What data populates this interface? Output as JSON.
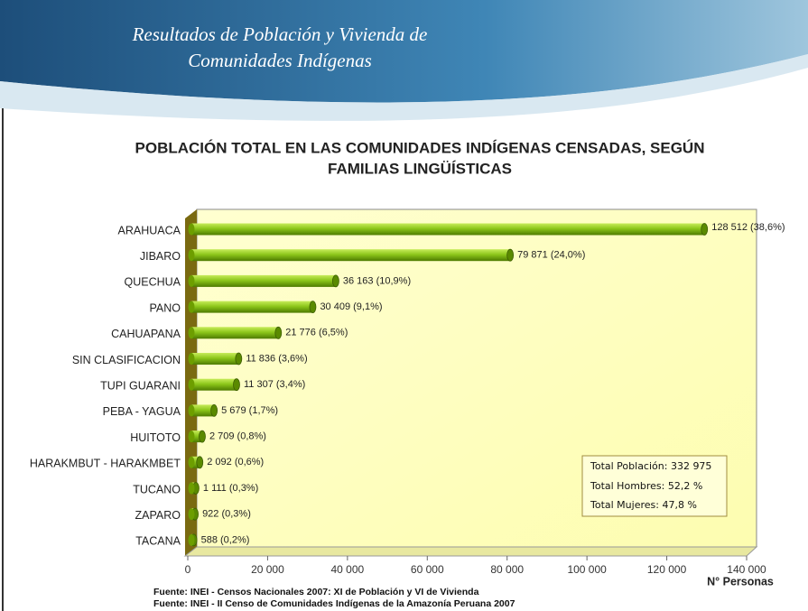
{
  "header": {
    "title_lines": [
      "Resultados de Población y Vivienda de",
      "Comunidades Indígenas"
    ]
  },
  "chart_data": {
    "type": "hbar",
    "title_lines": [
      "POBLACIÓN TOTAL EN LAS COMUNIDADES INDÍGENAS CENSADAS, SEGÚN",
      "FAMILIAS LINGÜÍSTICAS"
    ],
    "categories": [
      "ARAHUACA",
      "JIBARO",
      "QUECHUA",
      "PANO",
      "CAHUAPANA",
      "SIN CLASIFICACION",
      "TUPI GUARANI",
      "PEBA - YAGUA",
      "HUITOTO",
      "HARAKMBUT - HARAKMBET",
      "TUCANO",
      "ZAPARO",
      "TACANA"
    ],
    "values": [
      128512,
      79871,
      36163,
      30409,
      21776,
      11836,
      11307,
      5679,
      2709,
      2092,
      1111,
      922,
      588
    ],
    "value_labels": [
      "128 512 (38,6%)",
      "79 871 (24,0%)",
      "36 163 (10,9%)",
      "30 409 (9,1%)",
      "21 776 (6,5%)",
      "11 836 (3,6%)",
      "11 307 (3,4%)",
      "5 679 (1,7%)",
      "2 709 (0,8%)",
      "2 092 (0,6%)",
      "1 111 (0,3%)",
      "922 (0,3%)",
      "588 (0,2%)"
    ],
    "color": "#7fb800",
    "xlim": [
      0,
      140000
    ],
    "xticks": [
      0,
      {
        "value": 20000,
        "label": "20 000"
      },
      {
        "value": 40000,
        "label": "40 000"
      },
      {
        "value": 60000,
        "label": "60 000"
      },
      {
        "value": 80000,
        "label": "80 000"
      },
      {
        "value": 100000,
        "label": "100 000"
      },
      {
        "value": 120000,
        "label": "120 000"
      },
      {
        "value": 140000,
        "label": "140 000"
      }
    ],
    "xlabel": "N° Personas",
    "annotations": [
      "Total Población: 332 975",
      "Total Hombres: 52,2 %",
      "Total Mujeres: 47,8 %"
    ],
    "sources": [
      "Fuente: INEI - Censos Nacionales 2007: XI de Población y VI de Vivienda",
      "Fuente: INEI - II Censo de Comunidades Indígenas de la Amazonía Peruana 2007"
    ]
  }
}
